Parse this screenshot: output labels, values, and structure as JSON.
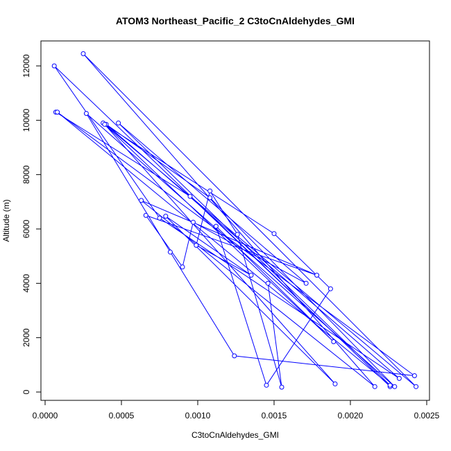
{
  "chart_data": {
    "type": "scatter",
    "title": "ATOM3 Northeast_Pacific_2 C3toCnAldehydes_GMI",
    "xlabel": "C3toCnAldehydes_GMI",
    "ylabel": "Altitude (m)",
    "xlim": [
      0.0,
      0.0025
    ],
    "ylim": [
      0,
      12500
    ],
    "x_ticks": [
      "0.0000",
      "0.0005",
      "0.0010",
      "0.0015",
      "0.0020",
      "0.0025"
    ],
    "x_tick_values": [
      0.0,
      0.0005,
      0.001,
      0.0015,
      0.002,
      0.0025
    ],
    "y_ticks": [
      "0",
      "2000",
      "4000",
      "6000",
      "8000",
      "10000",
      "12000"
    ],
    "y_tick_values": [
      0,
      2000,
      4000,
      6000,
      8000,
      10000,
      12000
    ],
    "grid": false,
    "series": [
      {
        "color": "#0000ff",
        "marker": "open-circle",
        "connected": true,
        "x": [
          7e-05,
          0.00095,
          0.00226,
          6e-05,
          0.00075,
          0.00232,
          0.0004,
          0.00108,
          0.00229,
          0.00027,
          0.00082,
          0.00124,
          0.00242,
          8e-05,
          0.00226,
          0.00048,
          0.00171,
          0.00097,
          0.0009,
          0.00066,
          0.00178,
          0.00063,
          0.00216,
          0.00025,
          0.00243,
          0.00038,
          0.00189,
          0.00112,
          0.00145,
          0.00187,
          0.0015,
          0.00039,
          0.0019,
          0.00079,
          0.00135,
          0.00099,
          0.00108,
          0.00126,
          0.00155,
          0.00146
        ],
        "y": [
          10300,
          7200,
          200,
          12000,
          6400,
          500,
          9850,
          7150,
          200,
          10250,
          5150,
          1330,
          600,
          10300,
          250,
          9900,
          4000,
          6250,
          4600,
          6500,
          4300,
          7050,
          200,
          12450,
          200,
          9900,
          1850,
          6100,
          250,
          3800,
          5830,
          9850,
          300,
          6470,
          4300,
          5400,
          7400,
          5800,
          180,
          4000
        ]
      }
    ]
  }
}
